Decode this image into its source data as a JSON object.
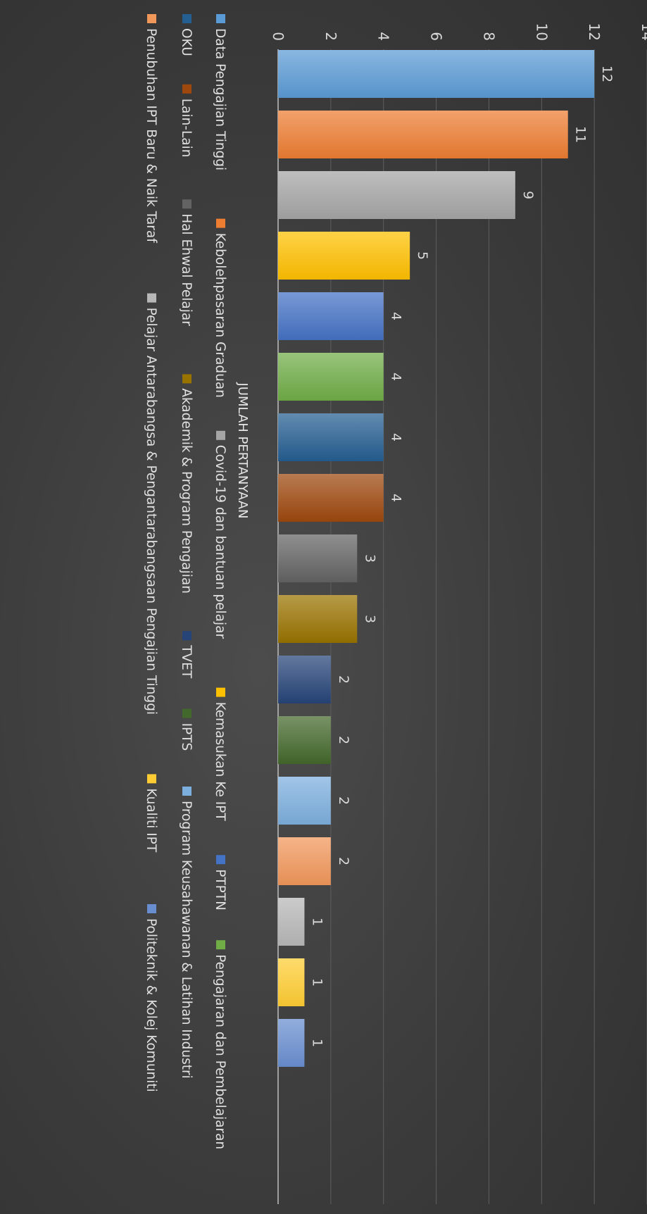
{
  "chart_data": {
    "type": "bar",
    "title": "JUMLAH PERTANYAAN",
    "ylim": [
      0,
      14
    ],
    "yticks": [
      0,
      2,
      4,
      6,
      8,
      10,
      12,
      14
    ],
    "grid": true,
    "legend": "bottom",
    "categories": [
      "Data Pengajian Tinggi",
      "Kebolehpasaran Graduan",
      "Covid-19 dan bantuan pelajar",
      "Kemasukan Ke IPT",
      "PTPTN",
      "Pengajaran dan Pembelajaran",
      "OKU",
      "Lain-Lain",
      "Hal Ehwal Pelajar",
      "Akademik & Program Pengajian",
      "TVET",
      "IPTS",
      "Program Keusahawanan & Latihan Industri",
      "Penubuhan IPT Baru & Naik Taraf",
      "Pelajar Antarabangsa & Pengantarabangsaan Pengajian Tinggi",
      "Kualiti IPT",
      "Politeknik & Kolej Komuniti"
    ],
    "values": [
      12,
      11,
      9,
      5,
      4,
      4,
      4,
      4,
      3,
      3,
      2,
      2,
      2,
      2,
      1,
      1,
      1
    ],
    "colors": [
      "#5b9bd5",
      "#ed7d31",
      "#a5a5a5",
      "#ffc000",
      "#4472c4",
      "#70ad47",
      "#255e91",
      "#9e480e",
      "#636363",
      "#997300",
      "#264478",
      "#43682b",
      "#7cafdd",
      "#f1975a",
      "#b7b7b7",
      "#ffcd33",
      "#698ed0"
    ]
  }
}
